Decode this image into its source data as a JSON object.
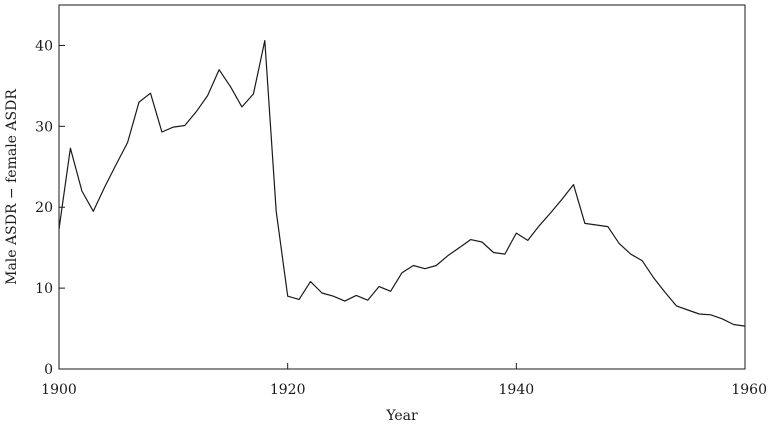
{
  "chart_data": {
    "type": "line",
    "title": "",
    "xlabel": "Year",
    "ylabel": "Male ASDR − female ASDR",
    "xlim": [
      1900,
      1960
    ],
    "ylim": [
      0,
      45
    ],
    "xticks": [
      1900,
      1920,
      1940,
      1960
    ],
    "yticks": [
      0,
      10,
      20,
      30,
      40
    ],
    "grid": false,
    "legend": "none",
    "line_color": "#1a1a1a",
    "series": [
      {
        "x": [
          1900,
          1901,
          1902,
          1903,
          1904,
          1905,
          1906,
          1907,
          1908,
          1909,
          1910,
          1911,
          1912,
          1913,
          1914,
          1915,
          1916,
          1917,
          1918,
          1919,
          1920,
          1921,
          1922,
          1923,
          1924,
          1925,
          1926,
          1927,
          1928,
          1929,
          1930,
          1931,
          1932,
          1933,
          1934,
          1935,
          1936,
          1937,
          1938,
          1939,
          1940,
          1941,
          1942,
          1943,
          1944,
          1945,
          1946,
          1947,
          1948,
          1949,
          1950,
          1951,
          1952,
          1953,
          1954,
          1955,
          1956,
          1957,
          1958,
          1959,
          1960
        ],
        "y": [
          17.3,
          27.3,
          22.0,
          19.5,
          22.5,
          25.3,
          28.0,
          33.0,
          34.1,
          29.3,
          29.9,
          30.1,
          31.8,
          33.8,
          37.0,
          34.9,
          32.4,
          34.0,
          40.6,
          19.5,
          9.0,
          8.6,
          10.8,
          9.4,
          9.0,
          8.4,
          9.1,
          8.5,
          10.2,
          9.6,
          11.9,
          12.8,
          12.4,
          12.8,
          14.0,
          15.0,
          16.0,
          15.7,
          14.4,
          14.2,
          16.8,
          15.9,
          17.7,
          19.3,
          21.0,
          22.8,
          18.0,
          17.8,
          17.6,
          15.5,
          14.2,
          13.4,
          11.3,
          9.5,
          7.8,
          7.3,
          6.8,
          6.7,
          6.2,
          5.5,
          5.3
        ]
      }
    ]
  }
}
